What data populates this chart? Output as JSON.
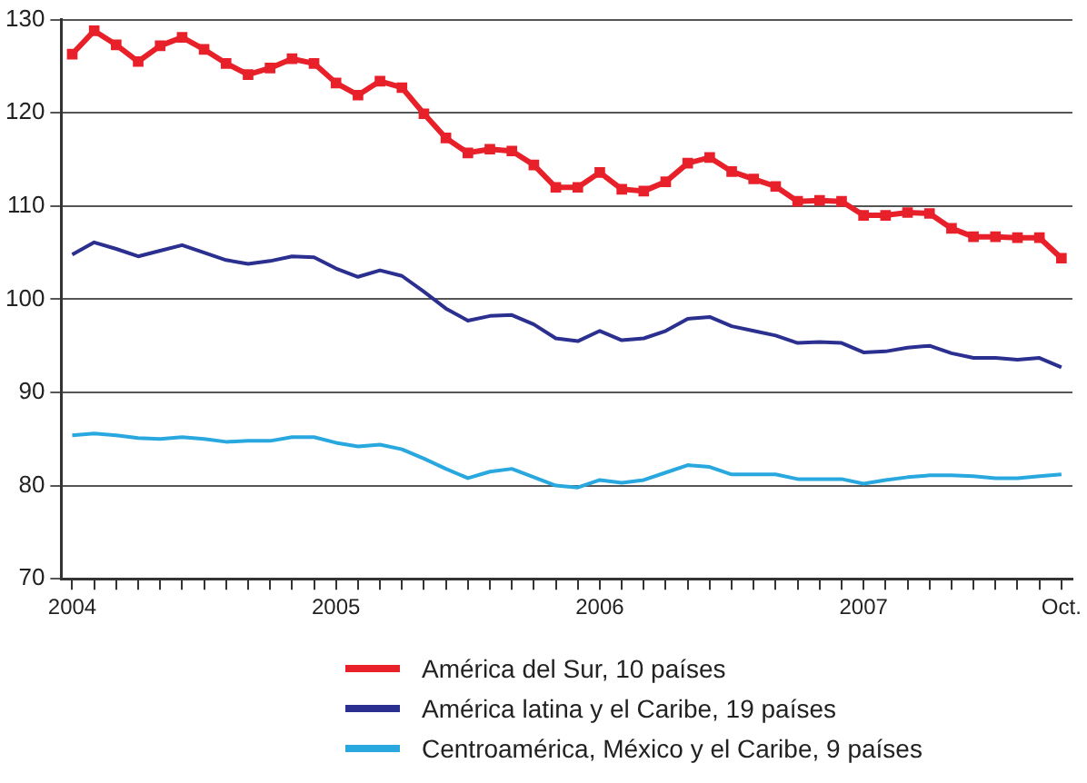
{
  "chart_data": {
    "type": "line",
    "categories": [
      "2004",
      null,
      null,
      null,
      null,
      null,
      null,
      null,
      null,
      null,
      null,
      null,
      "2005",
      null,
      null,
      null,
      null,
      null,
      null,
      null,
      null,
      null,
      null,
      null,
      "2006",
      null,
      null,
      null,
      null,
      null,
      null,
      null,
      null,
      null,
      null,
      null,
      "2007",
      null,
      null,
      null,
      null,
      null,
      null,
      null,
      null,
      "Oct."
    ],
    "series": [
      {
        "name": "América del Sur, 10 países",
        "color": "#e8202a",
        "marker": "square",
        "values": [
          126.3,
          128.8,
          127.3,
          125.5,
          127.2,
          128.1,
          126.8,
          125.3,
          124.1,
          124.8,
          125.8,
          125.3,
          123.2,
          121.9,
          123.4,
          122.7,
          119.9,
          117.3,
          115.7,
          116.1,
          115.9,
          114.4,
          112.0,
          112.0,
          113.6,
          111.8,
          111.6,
          112.6,
          114.6,
          115.2,
          113.7,
          112.9,
          112.1,
          110.5,
          110.6,
          110.5,
          109.0,
          109.0,
          109.3,
          109.2,
          107.6,
          106.7,
          106.7,
          106.6,
          106.6,
          104.4
        ]
      },
      {
        "name": "América latina y el Caribe, 19 países",
        "color": "#2b2f8f",
        "values": [
          104.8,
          106.1,
          105.4,
          104.6,
          105.2,
          105.8,
          105.0,
          104.2,
          103.8,
          104.1,
          104.6,
          104.5,
          103.3,
          102.4,
          103.1,
          102.5,
          100.8,
          99.0,
          97.7,
          98.2,
          98.3,
          97.3,
          95.8,
          95.5,
          96.6,
          95.6,
          95.8,
          96.6,
          97.9,
          98.1,
          97.1,
          96.6,
          96.1,
          95.3,
          95.4,
          95.3,
          94.3,
          94.4,
          94.8,
          95.0,
          94.2,
          93.7,
          93.7,
          93.5,
          93.7,
          92.7
        ]
      },
      {
        "name": "Centroamérica, México y el Caribe, 9 países",
        "color": "#29a8e0",
        "values": [
          85.4,
          85.6,
          85.4,
          85.1,
          85.0,
          85.2,
          85.0,
          84.7,
          84.8,
          84.8,
          85.2,
          85.2,
          84.6,
          84.2,
          84.4,
          83.9,
          82.9,
          81.8,
          80.8,
          81.5,
          81.8,
          80.9,
          80.0,
          79.8,
          80.6,
          80.3,
          80.6,
          81.4,
          82.2,
          82.0,
          81.2,
          81.2,
          81.2,
          80.7,
          80.7,
          80.7,
          80.2,
          80.6,
          80.9,
          81.1,
          81.1,
          81.0,
          80.8,
          80.8,
          81.0,
          81.2
        ]
      }
    ],
    "ylim": [
      70,
      130
    ],
    "yticks": [
      70,
      80,
      90,
      100,
      110,
      120,
      130
    ],
    "grid": "y",
    "line_style": "solid",
    "legend": "bottom"
  }
}
